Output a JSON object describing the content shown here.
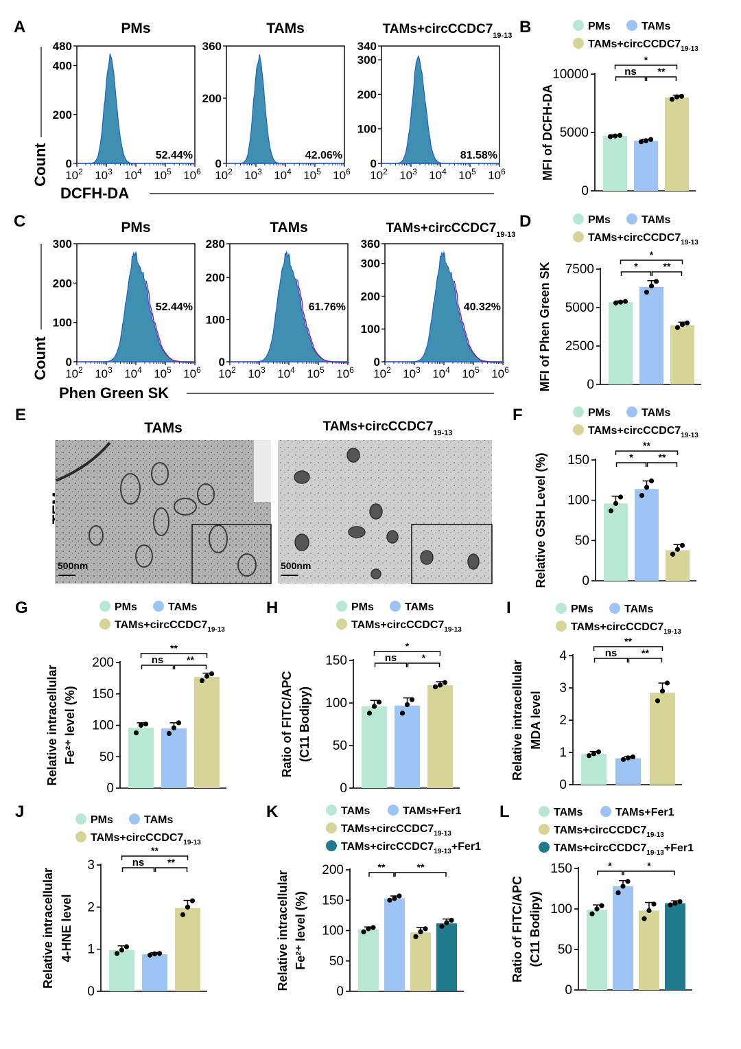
{
  "colors": {
    "pms": "#b8e8d4",
    "tams": "#9ec4f5",
    "circ": "#d6d497",
    "circfer": "#1f7a8c",
    "hist_fill": "#3f8fb0",
    "hist_edge": "#1e5fd6",
    "hist_tail": "#8b1b8b"
  },
  "panel_letters": [
    "A",
    "B",
    "C",
    "D",
    "E",
    "F",
    "G",
    "H",
    "I",
    "J",
    "K",
    "L"
  ],
  "legend3": {
    "pms": "PMs",
    "tams": "TAMs",
    "circ_main": "TAMs+circCCDC7",
    "circ_sub": "19-13"
  },
  "legend4": {
    "tams": "TAMs",
    "tams_fer": "TAMs+Fer1",
    "circ_main": "TAMs+circCCDC7",
    "circ_sub": "19-13",
    "circ_fer_suffix": "+Fer1"
  },
  "flow": {
    "ylabel": "Count",
    "x_tick_base": "10",
    "x_tick_exps": [
      "2",
      "3",
      "4",
      "5",
      "6"
    ],
    "panelA": {
      "xlabel": "DCFH-DA",
      "plots": [
        {
          "title_main": "PMs",
          "title_sub": "",
          "pct": "52.44%",
          "yticks": [
            "0",
            "200",
            "400",
            "480"
          ],
          "ymax": 480,
          "peak": 3.13,
          "width": 0.18,
          "tail": false
        },
        {
          "title_main": "TAMs",
          "title_sub": "",
          "pct": "42.06%",
          "yticks": [
            "0",
            "200",
            "360"
          ],
          "ymax": 360,
          "peak": 3.1,
          "width": 0.17,
          "tail": false
        },
        {
          "title_main": "TAMs+circCCDC7",
          "title_sub": "19-13",
          "pct": "81.58%",
          "yticks": [
            "0",
            "100",
            "200",
            "300",
            "340"
          ],
          "ymax": 340,
          "peak": 3.25,
          "width": 0.2,
          "tail": false
        }
      ]
    },
    "panelC": {
      "xlabel": "Phen Green SK",
      "plots": [
        {
          "title_main": "PMs",
          "title_sub": "",
          "pct": "52.44%",
          "yticks": [
            "0",
            "100",
            "200",
            "300"
          ],
          "ymax": 300,
          "peak": 3.95,
          "width": 0.27,
          "tail": true
        },
        {
          "title_main": "TAMs",
          "title_sub": "",
          "pct": "61.76%",
          "yticks": [
            "0",
            "100",
            "200",
            "280"
          ],
          "ymax": 280,
          "peak": 3.9,
          "width": 0.27,
          "tail": true
        },
        {
          "title_main": "TAMs+circCCDC7",
          "title_sub": "19-13",
          "pct": "40.32%",
          "yticks": [
            "0",
            "100",
            "200",
            "300",
            "360"
          ],
          "ymax": 360,
          "peak": 3.95,
          "width": 0.27,
          "tail": true
        }
      ]
    }
  },
  "panelE": {
    "row_label": "TEM",
    "titles": [
      {
        "main": "TAMs",
        "sub": ""
      },
      {
        "main": "TAMs+circCCDC7",
        "sub": "19-13"
      }
    ],
    "scale_bar": "500nm"
  },
  "chart_data": [
    {
      "panel": "B",
      "type": "bar",
      "ylabel": [
        "MFI of DCFH-DA"
      ],
      "ylim": [
        0,
        10000
      ],
      "yticks": [
        0,
        5000,
        10000
      ],
      "categories": [
        "PMs",
        "TAMs",
        "TAMs+circCCDC7 19-13"
      ],
      "values": [
        4700,
        4300,
        8000
      ],
      "errors": [
        100,
        120,
        200
      ],
      "points": [
        [
          4650,
          4700,
          4750
        ],
        [
          4200,
          4300,
          4400
        ],
        [
          7850,
          8050,
          8100
        ]
      ],
      "sig": [
        {
          "a": 0,
          "b": 1,
          "label": "ns",
          "level": 0
        },
        {
          "a": 1,
          "b": 2,
          "label": "**",
          "level": 0
        },
        {
          "a": 0,
          "b": 2,
          "label": "*",
          "level": 1
        }
      ]
    },
    {
      "panel": "D",
      "type": "bar",
      "ylabel": [
        "MFI of Phen Green SK"
      ],
      "ylim": [
        0,
        7500
      ],
      "yticks": [
        0,
        2500,
        5000,
        7500
      ],
      "categories": [
        "PMs",
        "TAMs",
        "TAMs+circCCDC7 19-13"
      ],
      "values": [
        5350,
        6350,
        3850
      ],
      "errors": [
        80,
        400,
        200
      ],
      "points": [
        [
          5300,
          5350,
          5400
        ],
        [
          6000,
          6400,
          6700
        ],
        [
          3700,
          3900,
          4000
        ]
      ],
      "sig": [
        {
          "a": 0,
          "b": 1,
          "label": "*",
          "level": 0
        },
        {
          "a": 1,
          "b": 2,
          "label": "**",
          "level": 0
        },
        {
          "a": 0,
          "b": 2,
          "label": "*",
          "level": 1
        }
      ]
    },
    {
      "panel": "F",
      "type": "bar",
      "ylabel": [
        "Relative GSH Level (%)"
      ],
      "ylim": [
        0,
        150
      ],
      "yticks": [
        0,
        50,
        100,
        150
      ],
      "categories": [
        "PMs",
        "TAMs",
        "TAMs+circCCDC7 19-13"
      ],
      "values": [
        96,
        114,
        38
      ],
      "errors": [
        9,
        10,
        7
      ],
      "points": [
        [
          87,
          96,
          104
        ],
        [
          106,
          116,
          124
        ],
        [
          33,
          39,
          44
        ]
      ],
      "sig": [
        {
          "a": 0,
          "b": 1,
          "label": "*",
          "level": 0
        },
        {
          "a": 1,
          "b": 2,
          "label": "**",
          "level": 0
        },
        {
          "a": 0,
          "b": 2,
          "label": "**",
          "level": 1
        }
      ]
    },
    {
      "panel": "G",
      "type": "bar",
      "ylabel": [
        "Relative intracellular",
        "Fe²⁺ level (%)"
      ],
      "ylim": [
        0,
        200
      ],
      "yticks": [
        0,
        50,
        100,
        150,
        200
      ],
      "categories": [
        "PMs",
        "TAMs",
        "TAMs+circCCDC7 19-13"
      ],
      "values": [
        96,
        95,
        177
      ],
      "errors": [
        8,
        9,
        6
      ],
      "points": [
        [
          88,
          100,
          102
        ],
        [
          87,
          96,
          104
        ],
        [
          171,
          178,
          182
        ]
      ],
      "sig": [
        {
          "a": 0,
          "b": 1,
          "label": "ns",
          "level": 0
        },
        {
          "a": 1,
          "b": 2,
          "label": "**",
          "level": 0
        },
        {
          "a": 0,
          "b": 2,
          "label": "**",
          "level": 1
        }
      ]
    },
    {
      "panel": "H",
      "type": "bar",
      "ylabel": [
        "Ratio of FITC/APC",
        "(C11 Bodipy)"
      ],
      "ylim": [
        0,
        150
      ],
      "yticks": [
        0,
        50,
        100,
        150
      ],
      "categories": [
        "PMs",
        "TAMs",
        "TAMs+circCCDC7 19-13"
      ],
      "values": [
        96,
        97,
        121
      ],
      "errors": [
        7,
        9,
        4
      ],
      "points": [
        [
          88,
          96,
          101
        ],
        [
          88,
          98,
          104
        ],
        [
          119,
          121,
          124
        ]
      ],
      "sig": [
        {
          "a": 0,
          "b": 1,
          "label": "ns",
          "level": 0
        },
        {
          "a": 1,
          "b": 2,
          "label": "*",
          "level": 0
        },
        {
          "a": 0,
          "b": 2,
          "label": "*",
          "level": 1
        }
      ]
    },
    {
      "panel": "I",
      "type": "bar",
      "ylabel": [
        "Relative intracellular",
        "MDA level"
      ],
      "ylim": [
        0,
        4
      ],
      "yticks": [
        0,
        1,
        2,
        3,
        4
      ],
      "categories": [
        "PMs",
        "TAMs",
        "TAMs+circCCDC7 19-13"
      ],
      "values": [
        0.95,
        0.82,
        2.85
      ],
      "errors": [
        0.08,
        0.06,
        0.3
      ],
      "points": [
        [
          0.9,
          0.96,
          1.02
        ],
        [
          0.78,
          0.83,
          0.86
        ],
        [
          2.6,
          2.9,
          3.15
        ]
      ],
      "sig": [
        {
          "a": 0,
          "b": 1,
          "label": "ns",
          "level": 0
        },
        {
          "a": 1,
          "b": 2,
          "label": "**",
          "level": 0
        },
        {
          "a": 0,
          "b": 2,
          "label": "**",
          "level": 1
        }
      ]
    },
    {
      "panel": "J",
      "type": "bar",
      "ylabel": [
        "Relative intracellular",
        "4-HNE level"
      ],
      "ylim": [
        0,
        3
      ],
      "yticks": [
        0,
        1,
        2,
        3
      ],
      "categories": [
        "PMs",
        "TAMs",
        "TAMs+circCCDC7 19-13"
      ],
      "values": [
        0.98,
        0.88,
        1.98
      ],
      "errors": [
        0.1,
        0.04,
        0.18
      ],
      "points": [
        [
          0.9,
          0.98,
          1.06
        ],
        [
          0.86,
          0.89,
          0.9
        ],
        [
          1.82,
          2.0,
          2.15
        ]
      ],
      "sig": [
        {
          "a": 0,
          "b": 1,
          "label": "ns",
          "level": 0
        },
        {
          "a": 1,
          "b": 2,
          "label": "**",
          "level": 0
        },
        {
          "a": 0,
          "b": 2,
          "label": "**",
          "level": 1
        }
      ]
    },
    {
      "panel": "K",
      "type": "bar",
      "ylabel": [
        "Relative intracellular",
        "Fe²⁺ level (%)"
      ],
      "ylim": [
        0,
        200
      ],
      "yticks": [
        0,
        50,
        100,
        150,
        200
      ],
      "categories": [
        "TAMs",
        "TAMs+Fer1",
        "TAMs+circCCDC7 19-13",
        "TAMs+circCCDC7 19-13+Fer1"
      ],
      "values": [
        102,
        153,
        97,
        112
      ],
      "errors": [
        4,
        4,
        8,
        7
      ],
      "points": [
        [
          98,
          103,
          105
        ],
        [
          150,
          153,
          157
        ],
        [
          90,
          98,
          103
        ],
        [
          107,
          113,
          117
        ]
      ],
      "sig": [
        {
          "a": 0,
          "b": 1,
          "label": "**",
          "level": 0
        },
        {
          "a": 1,
          "b": 3,
          "label": "**",
          "level": 0
        }
      ]
    },
    {
      "panel": "L",
      "type": "bar",
      "ylabel": [
        "Ratio of FITC/APC",
        "(C11 Bodipy)"
      ],
      "ylim": [
        0,
        150
      ],
      "yticks": [
        0,
        50,
        100,
        150
      ],
      "categories": [
        "TAMs",
        "TAMs+Fer1",
        "TAMs+circCCDC7 19-13",
        "TAMs+circCCDC7 19-13+Fer1"
      ],
      "values": [
        99,
        128,
        98,
        107
      ],
      "errors": [
        6,
        7,
        10,
        3
      ],
      "points": [
        [
          94,
          100,
          104
        ],
        [
          120,
          128,
          134
        ],
        [
          88,
          98,
          106
        ],
        [
          105,
          107,
          109
        ]
      ],
      "sig": [
        {
          "a": 0,
          "b": 1,
          "label": "*",
          "level": 0
        },
        {
          "a": 1,
          "b": 3,
          "label": "*",
          "level": 0
        }
      ]
    }
  ]
}
